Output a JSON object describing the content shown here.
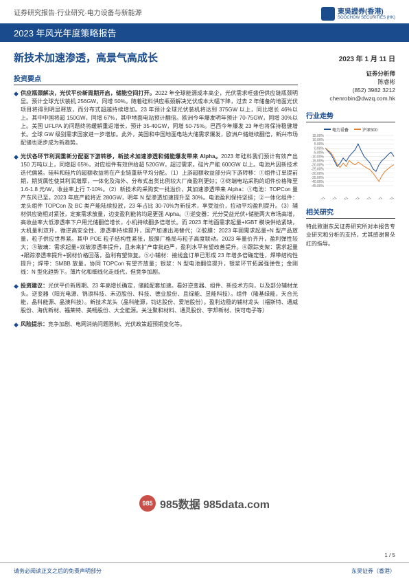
{
  "header": {
    "breadcrumb": "证券研究报告·行业研究·电力设备与新能源",
    "report_title_bar": "2023 年风光年度策略报告",
    "company_name": "東吳證券(香港)",
    "company_name_en": "SOOCHOW SECURITIES (HK)"
  },
  "title": {
    "main": "新技术加速渗透，高景气高成长",
    "date": "2023 年 1 月 11 日"
  },
  "analyst": {
    "title": "证券分析师",
    "name": "陈睿彬",
    "phone": "(852) 3982 3212",
    "email": "chenrobin@dwzq.com.hk"
  },
  "sections": {
    "key_points_header": "投资要点",
    "industry_trend_header": "行业走势",
    "related_research_header": "相关研究"
  },
  "bullets": [
    {
      "lead": "供应瓶颈解决，光伏平价新周期开启，储能空间打开。",
      "body": "2022 年全球能源成本高企，光伏需求旺盛但供应链瓶颈明显。预计全球光伏装机 256GW，同增 50%。随着硅料供应瓶颈解决光伏成本大幅下降，过去 2 年储备的地面光伏项目将得到明显释放，而分布式超越持续增加。23 年预计全球光伏装机将达到 375GW 以上，同比增长 46%以上。其中中国将超 150GW，同增 67%，其中地面电站预计翻倍。欧洲今年爆发明年预计 70-75GW，同增 30%以上。美国 UFLPA 的问题终将缓解重返增长，预计 35-40GW，同增 50-75%。巴西今年爆发 23 年也将保持稳健增长。全球 GW 级别需求国家进一步增加。此外，美国和中国地面电站大储需求爆发，欧洲户储继续翻倍，新兴市场配储也逐步成为新趋势。"
    },
    {
      "lead": "光伏各环节利润重新分配驱下游转移，新技术加速渗透和储能爆发带来 Alpha。",
      "body": "2023 年硅料我们预计有效产出 150 万吨以上，同增超 65%，对应组件有效供给超 520GW，超过需求。硅片产能 600GW 以上。电池片因新技术迭代偏紧。硅料和硅片的超额收益将在产业链重新平均分配。（1）上游超额收益部分向下游转移：①组件订单提前期，期货属性使其利润增厚，一体化及海外、分布式出货比例较大厂商盈利更好；②终端电站采购的组件价格降至 1.6-1.8 元/W，收益率上行 7-10%。（2）新技术的采购安一批溢价，其加速渗透带来 Alpha：①电池：TOPCon 量产东风已至。2023 年底产能将近 280GW，明年 N 型渗透加速提升至 30%。电池盈利保持坚挺；②一体化组件：龙头组件 TOPCon 及 BC 类产能陆续投放，23 年占比 30-70%为新技术，享受溢价，拉动平均盈利提升。（3）辅材供应链相对紧张，定案需求放量，边变盈利能将均是更强 Alpha。①逆变器：光分受益光伏+储能两大市场高增，高收益率大低渗透率下户用光储翻倍增长，小机持续翻多倍增长。而 2023 年地面需求起量+IGBT 模块供给紧缺，大机量利双升，微逆高安全性、渗透率持续提升，国产加速出海替代；②胶膜：2023 年固需求起量+N 型产品放量，粒子供应世界紧。其中 POE 粒子结构性紧张，胶膜厂格局与粒子高度联动。2023 年量价齐升，盈利弹性较大；③玻璃：需求起量+双玻渗透率提升，且未来扩产审批趋严，盈利水平有望改善提升。④跟踪支架：需求起量+跟踪渗透率提升+钢材价格回落，盈利有望恢复。⑤小辅材：接线盒订单已形成 23 年增多倍确定性，焊带结构性提升；焊带：SMBB 放量，协同 TOPCon 有望齐放量；银浆：N 型电池翻倍提升，银浆环节拓展强弹性；金刚线：N 型化趋势下。薄片化和细线化走线代，但竞争加剧。"
    },
    {
      "lead": "投资建议：",
      "body": "光伏平价新周期、23 年高增长确定，储能配套加速。看好逆变器、组件、新技术方向，以及部分辅材龙头。逆变器（阳光电源、锦浪科技、禾迈股份、科技、德业股份、且绿能、昱能科技）。组件（隆基绿能，天合光能，晶科能源、晶澳科技）。新技术龙头（晶科能源，钧达股份、爱旭股份）。盈利边稳的辅材龙头（福斯特、通威股份、海优新材、福莱特、美畅股份、大全能源。关注聚和材料、通灵股份、宇邦新材、快可电子等）"
    },
    {
      "lead": "风险提示：",
      "body": "竞争加剧、电网消纳问题限制、光伏政策超预期变化等。"
    }
  ],
  "related_text": "特此致谢东吴证券研究所对本报告专业研究和分析的支持，尤其感谢曾朵红的指导。",
  "chart": {
    "type": "line",
    "legend": [
      {
        "label": "电力设备",
        "color": "#1a4b8c"
      },
      {
        "label": "沪深300",
        "color": "#e08030"
      }
    ],
    "ylim": [
      -45,
      15
    ],
    "ytick_step": 5,
    "ytick_suffix": "%",
    "x_labels": [
      "2022/1/11",
      "2022/3/11",
      "2022/5/11",
      "2022/7/11",
      "2022/9/11",
      "2022/11/11",
      "2023/1/11"
    ],
    "background_color": "#ffffff",
    "grid_color": "#dddddd",
    "label_fontsize": 5,
    "series": {
      "power": [
        0,
        -4,
        -8,
        -15,
        -22,
        -18,
        -12,
        -16,
        -10,
        -6,
        -2,
        5,
        -3,
        -10,
        -14,
        -18,
        -25,
        -28,
        -20,
        -15,
        -12,
        -8,
        -5,
        -10
      ],
      "csi300": [
        0,
        -3,
        -6,
        -12,
        -20,
        -23,
        -18,
        -22,
        -15,
        -18,
        -20,
        -17,
        -19,
        -22,
        -24,
        -26,
        -30,
        -35,
        -40,
        -33,
        -28,
        -25,
        -22,
        -20
      ]
    }
  },
  "footer": {
    "disclaimer": "请务必阅读正文之后的免责声明部分",
    "company": "东吴证券（香港）"
  },
  "page": "1 / 5",
  "watermark": {
    "logo_text": "985",
    "text": "985数据 985data.com"
  }
}
